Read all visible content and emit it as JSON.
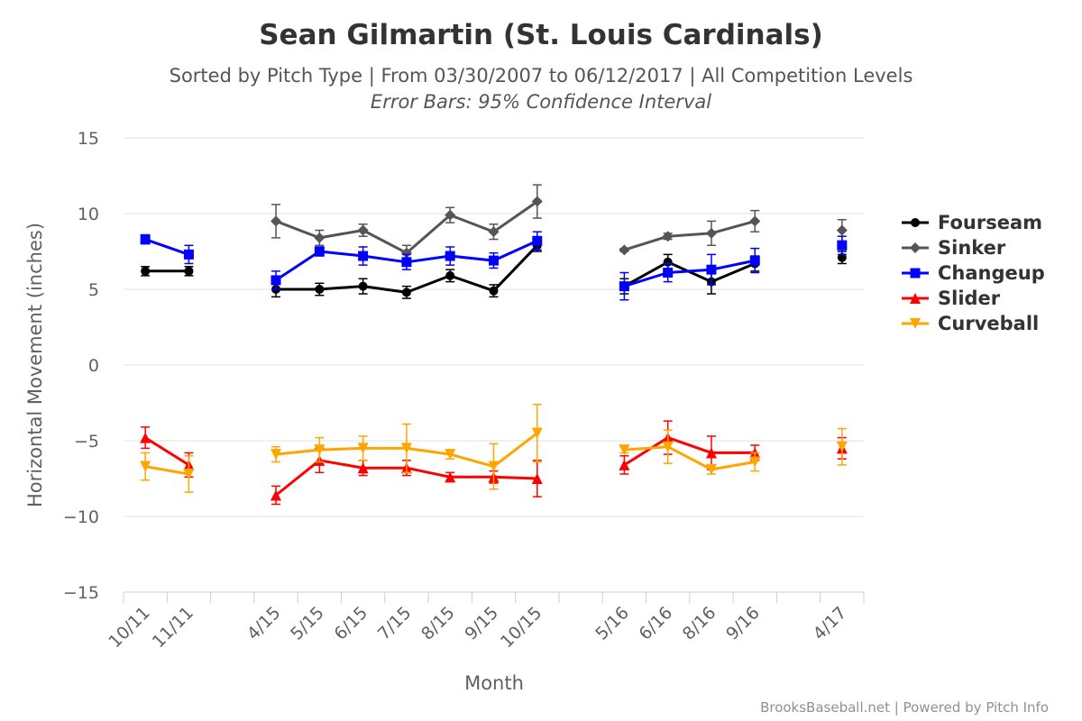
{
  "chart_data": {
    "type": "line",
    "title": "Sean Gilmartin (St. Louis Cardinals)",
    "subtitle": "Sorted by Pitch Type | From 03/30/2007 to 06/12/2017 | All Competition Levels",
    "subtitle2": "Error Bars: 95% Confidence Interval",
    "xlabel": "Month",
    "ylabel": "Horizontal Movement (inches)",
    "ylim": [
      -15,
      15
    ],
    "yticks": [
      15,
      10,
      5,
      0,
      -5,
      -10,
      -15
    ],
    "ytick_labels": [
      "15",
      "10",
      "5",
      "0",
      "−5",
      "−10",
      "−15"
    ],
    "categories": [
      "10/11",
      "11/11",
      "",
      "4/15",
      "5/15",
      "6/15",
      "7/15",
      "8/15",
      "9/15",
      "10/15",
      "",
      "5/16",
      "6/16",
      "8/16",
      "9/16",
      "",
      "4/17"
    ],
    "grid": true,
    "legend": "right",
    "series": [
      {
        "name": "Fourseam",
        "color": "#000000",
        "marker": "circle",
        "values": [
          6.2,
          6.2,
          null,
          5.0,
          5.0,
          5.2,
          4.8,
          5.9,
          4.9,
          7.9,
          null,
          5.2,
          6.8,
          5.5,
          6.7,
          null,
          7.1
        ],
        "err": [
          0.3,
          0.3,
          null,
          0.5,
          0.4,
          0.5,
          0.4,
          0.4,
          0.4,
          0.4,
          null,
          0.5,
          0.5,
          0.8,
          0.5,
          null,
          0.4
        ]
      },
      {
        "name": "Sinker",
        "color": "#555555",
        "marker": "diamond",
        "values": [
          null,
          null,
          null,
          9.5,
          8.4,
          8.9,
          7.4,
          9.9,
          8.8,
          10.8,
          null,
          7.6,
          8.5,
          8.7,
          9.5,
          null,
          8.9
        ],
        "err": [
          null,
          null,
          null,
          1.1,
          0.5,
          0.4,
          0.5,
          0.5,
          0.5,
          1.1,
          null,
          0.1,
          0.2,
          0.8,
          0.7,
          null,
          0.7
        ]
      },
      {
        "name": "Changeup",
        "color": "#0000ff",
        "marker": "square",
        "values": [
          8.3,
          7.3,
          null,
          5.6,
          7.5,
          7.2,
          6.8,
          7.2,
          6.9,
          8.2,
          null,
          5.2,
          6.1,
          6.3,
          6.9,
          null,
          7.9
        ],
        "err": [
          0.3,
          0.6,
          null,
          0.6,
          0.3,
          0.6,
          0.5,
          0.6,
          0.5,
          0.6,
          null,
          0.9,
          0.6,
          1.0,
          0.8,
          null,
          0.6
        ]
      },
      {
        "name": "Slider",
        "color": "#ff0000",
        "marker": "triangle",
        "values": [
          -4.8,
          -6.6,
          null,
          -8.6,
          -6.3,
          -6.8,
          -6.8,
          -7.4,
          -7.4,
          -7.5,
          null,
          -6.6,
          -4.8,
          -5.8,
          -5.8,
          null,
          -5.5
        ],
        "err": [
          0.7,
          0.8,
          null,
          0.6,
          0.8,
          0.5,
          0.5,
          0.3,
          0.4,
          1.2,
          null,
          0.6,
          1.1,
          1.1,
          0.5,
          null,
          0.7
        ]
      },
      {
        "name": "Curveball",
        "color": "#ffa500",
        "marker": "triangle-down",
        "values": [
          -6.7,
          -7.2,
          null,
          -5.9,
          -5.6,
          -5.5,
          -5.5,
          -5.9,
          -6.7,
          -4.5,
          null,
          -5.6,
          -5.4,
          -6.9,
          -6.4,
          null,
          -5.4
        ],
        "err": [
          0.9,
          1.2,
          null,
          0.5,
          0.8,
          0.8,
          1.6,
          0.3,
          1.5,
          1.9,
          null,
          0.2,
          1.1,
          0.3,
          0.6,
          null,
          1.2
        ]
      }
    ],
    "credits": "BrooksBaseball.net | Powered by Pitch Info"
  }
}
